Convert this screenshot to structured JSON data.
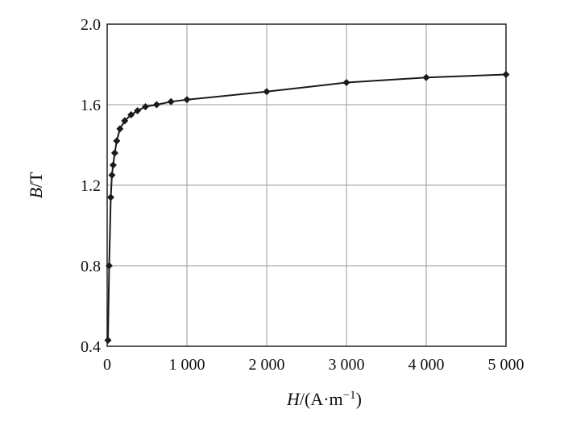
{
  "chart_data": {
    "type": "line",
    "title": "",
    "xlabel": {
      "italic": "H",
      "rest": "/(A·m",
      "sup": "−1",
      "close": ")"
    },
    "ylabel": {
      "italic": "B",
      "rest": "/T"
    },
    "xlim": [
      0,
      5000
    ],
    "ylim": [
      0.4,
      2.0
    ],
    "xticks": [
      0,
      1000,
      2000,
      3000,
      4000,
      5000
    ],
    "xtick_labels": [
      "0",
      "1 000",
      "2 000",
      "3 000",
      "4 000",
      "5 000"
    ],
    "yticks": [
      0.4,
      0.8,
      1.2,
      1.6,
      2.0
    ],
    "ytick_labels": [
      "0.4",
      "0.8",
      "1.2",
      "1.6",
      "2.0"
    ],
    "grid": true,
    "legend": "none",
    "series": [
      {
        "color": "#1a1a1a",
        "marker": "diamond",
        "x": [
          10,
          25,
          45,
          60,
          75,
          95,
          120,
          160,
          220,
          300,
          380,
          480,
          620,
          800,
          1000,
          2000,
          3000,
          4000,
          5000
        ],
        "y": [
          0.43,
          0.8,
          1.14,
          1.25,
          1.3,
          1.36,
          1.42,
          1.48,
          1.52,
          1.55,
          1.57,
          1.59,
          1.6,
          1.615,
          1.625,
          1.665,
          1.71,
          1.735,
          1.75
        ]
      }
    ]
  }
}
